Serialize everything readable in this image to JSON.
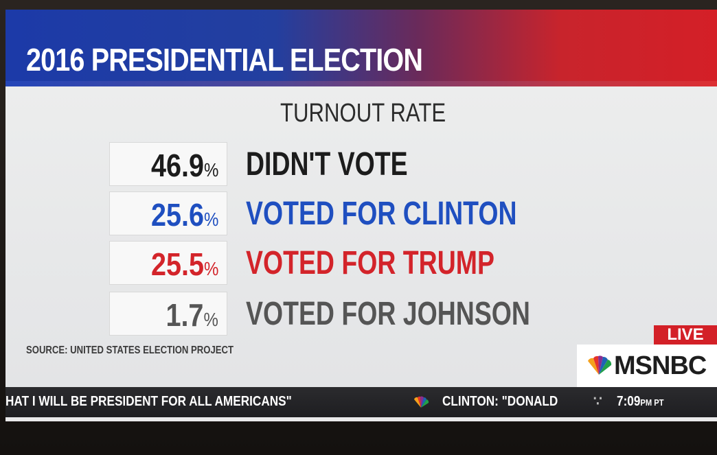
{
  "banner": {
    "title": "2016 PRESIDENTIAL ELECTION",
    "bg_left": "#1c3aa8",
    "bg_right": "#d41f27"
  },
  "subtitle": "TURNOUT RATE",
  "rows": [
    {
      "value": "46.9",
      "unit": "%",
      "label": "DIDN'T VOTE",
      "color": "#1c1c1c"
    },
    {
      "value": "25.6",
      "unit": "%",
      "label": "VOTED FOR CLINTON",
      "color": "#1f4fc0"
    },
    {
      "value": "25.5",
      "unit": "%",
      "label": "VOTED FOR TRUMP",
      "color": "#d3242a"
    },
    {
      "value": "1.7",
      "unit": "%",
      "label": "VOTED FOR JOHNSON",
      "color": "#555555"
    }
  ],
  "source": "SOURCE: UNITED STATES ELECTION PROJECT",
  "live_badge": "LIVE",
  "network": {
    "name": "MSNBC",
    "logo_icon": "nbc-peacock-icon"
  },
  "ticker": {
    "text_left": "HAT I WILL BE PRESIDENT FOR ALL AMERICANS\"",
    "text_right": "CLINTON: \"DONALD",
    "separator": "∵",
    "time": "7:09",
    "time_suffix": "PM PT"
  }
}
